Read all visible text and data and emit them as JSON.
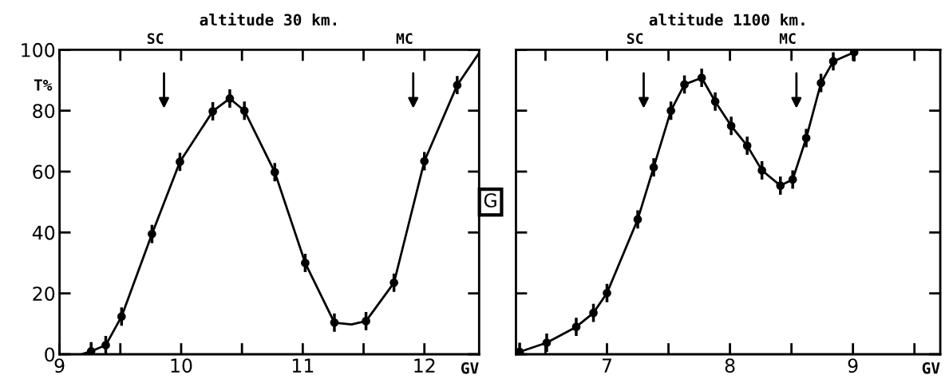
{
  "chart_data": [
    {
      "type": "line",
      "title": "altitude 30 km.",
      "xlabel": "GV",
      "ylabel": "T%",
      "xlim": [
        9,
        12.45
      ],
      "xticks": [
        9,
        {
          "value": 9.5,
          "label": null
        },
        10,
        {
          "value": 10.5,
          "label": null
        },
        11,
        {
          "value": 11.5,
          "label": null
        },
        12
      ],
      "ylim": [
        0,
        100
      ],
      "yticks": [
        0,
        20,
        40,
        60,
        80,
        100
      ],
      "series": [
        {
          "color": "#000000",
          "marker": "none",
          "x": [
            9.18,
            9.26,
            9.38,
            9.51,
            9.76,
            9.99,
            10.26,
            10.4,
            10.52,
            10.77,
            11.02,
            11.26,
            11.4,
            11.52,
            11.75,
            12.0,
            12.27,
            12.45
          ],
          "values": [
            0,
            1,
            3,
            12.4,
            39.5,
            63.2,
            79.8,
            84,
            80,
            59.8,
            30,
            10.4,
            9.8,
            10.9,
            23.5,
            63.4,
            88.4,
            99
          ]
        },
        {
          "type": "scatter",
          "color": "#000000",
          "marker": "circle",
          "x": [
            9.26,
            9.38,
            9.51,
            9.76,
            9.99,
            10.26,
            10.4,
            10.52,
            10.77,
            11.02,
            11.26,
            11.52,
            11.75,
            12.0,
            12.27
          ],
          "values": [
            1,
            3,
            12.4,
            39.5,
            63.2,
            79.8,
            84,
            80,
            59.8,
            30,
            10.4,
            10.9,
            23.5,
            63.4,
            88.4
          ],
          "errors": [
            3,
            3,
            3,
            3,
            3,
            3,
            3,
            3,
            3,
            3,
            3,
            3,
            3,
            3,
            3
          ]
        }
      ],
      "annotations": [
        "SC",
        "MC"
      ]
    },
    {
      "type": "line",
      "title": "altitude 1100 km.",
      "xlabel": "GV",
      "tick_labels": "x",
      "xlim": [
        6.26,
        9.71
      ],
      "xticks": [
        {
          "value": 6.5,
          "label": null
        },
        7,
        {
          "value": 7.5,
          "label": null
        },
        8,
        {
          "value": 8.5,
          "label": null
        },
        9,
        {
          "value": 9.5,
          "label": null
        }
      ],
      "ylim": [
        0,
        100
      ],
      "yticks": [
        0,
        20,
        40,
        60,
        80,
        100
      ],
      "series": [
        {
          "color": "#000000",
          "marker": "none",
          "x": [
            6.26,
            6.29,
            6.51,
            6.75,
            6.89,
            7.0,
            7.25,
            7.38,
            7.52,
            7.63,
            7.77,
            7.88,
            8.01,
            8.14,
            8.26,
            8.41,
            8.51,
            8.62,
            8.74,
            8.84,
            9.01
          ],
          "values": [
            0,
            0.8,
            3.8,
            9,
            13.6,
            20.1,
            44.3,
            61.4,
            80,
            88.6,
            90.8,
            83,
            75,
            68.5,
            60.4,
            55.4,
            57.4,
            71,
            89.1,
            96.2,
            99.2
          ]
        },
        {
          "type": "scatter",
          "color": "#000000",
          "marker": "circle",
          "x": [
            6.29,
            6.51,
            6.75,
            6.89,
            7.0,
            7.25,
            7.38,
            7.52,
            7.63,
            7.77,
            7.88,
            8.01,
            8.14,
            8.26,
            8.41,
            8.51,
            8.62,
            8.74,
            8.84,
            9.01
          ],
          "values": [
            0.8,
            3.8,
            9,
            13.6,
            20.1,
            44.3,
            61.4,
            80,
            88.6,
            90.8,
            83,
            75,
            68.5,
            60.4,
            55.4,
            57.4,
            71,
            89.1,
            96.2,
            99.2
          ],
          "errors": [
            3,
            3,
            3,
            3,
            3,
            3,
            3,
            3,
            3,
            3,
            3,
            3,
            3,
            3,
            3,
            3,
            3,
            3,
            3,
            3
          ]
        }
      ],
      "annotations": [
        "SC",
        "MC",
        "G"
      ]
    }
  ]
}
